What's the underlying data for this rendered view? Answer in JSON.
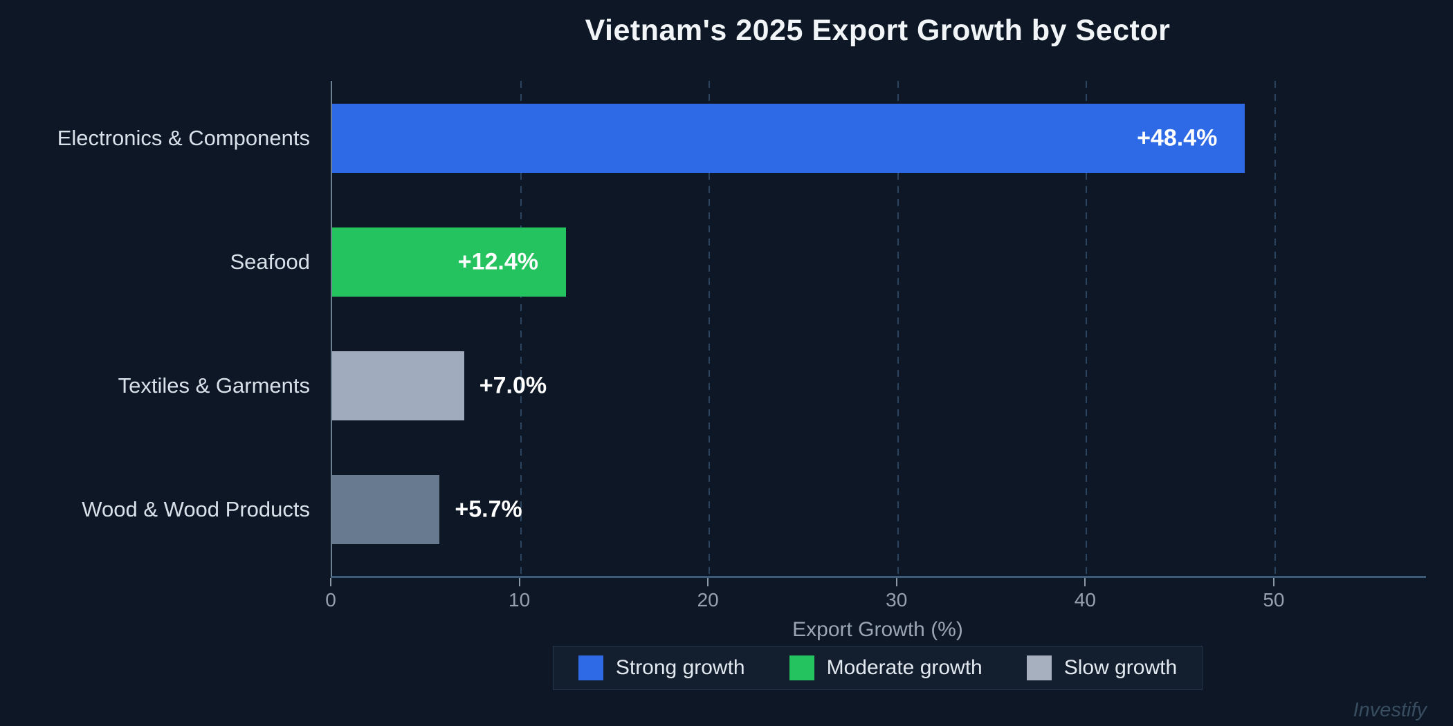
{
  "figure": {
    "watermark": "Investify"
  },
  "chart_data": {
    "type": "bar",
    "orientation": "horizontal",
    "title": "Vietnam's 2025 Export Growth by Sector",
    "categories": [
      "Electronics & Components",
      "Seafood",
      "Textiles & Garments",
      "Wood & Wood Products"
    ],
    "values": [
      48.4,
      12.4,
      7.0,
      5.7
    ],
    "value_labels": [
      "+48.4%",
      "+12.4%",
      "+7.0%",
      "+5.7%"
    ],
    "bar_colors": [
      "#2e6ae6",
      "#25c35f",
      "#a0acbe",
      "#687a90"
    ],
    "value_label_inside": [
      true,
      true,
      false,
      false
    ],
    "xlabel": "Export Growth (%)",
    "xlim": [
      0,
      58
    ],
    "xticks": [
      0,
      10,
      20,
      30,
      40,
      50
    ],
    "grid": {
      "axis": "x",
      "style": "dashed",
      "color": "#2b4560"
    },
    "legend": {
      "position": "bottom-center",
      "entries": [
        {
          "label": "Strong growth",
          "color": "#2e6ae6"
        },
        {
          "label": "Moderate growth",
          "color": "#25c35f"
        },
        {
          "label": "Slow growth",
          "color": "#a7b0bf"
        }
      ]
    },
    "colors": {
      "background": "#0d1725",
      "title": "#f2f5f8",
      "category_label": "#d8e0ea",
      "value_label": "#ffffff",
      "tick_label": "#95a1af",
      "axis_label": "#9aa6b4",
      "x_spine": "#3d5a78",
      "y_spine": "#6e8094",
      "gridline": "#2b4560",
      "legend_bg": "#131f2e",
      "legend_border": "#26374b",
      "watermark": "#394d61"
    }
  }
}
